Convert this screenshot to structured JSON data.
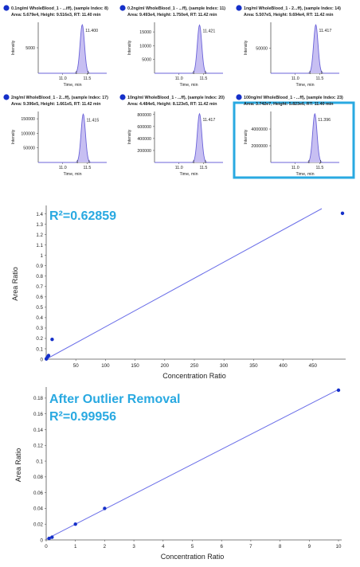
{
  "chart_data": [
    {
      "type": "line",
      "title": "0.1ng/ml WholeBlood_1 - ...iff), (sample Index: 8)",
      "subtitle": "Area: 5.679e4, Height: 9.516e3, RT: 11.40 min",
      "xlabel": "Time, min",
      "ylabel": "Intensity",
      "x_ticks": [
        11.0,
        11.5
      ],
      "y_ticks": [
        5000
      ],
      "ylim": [
        0,
        10000
      ],
      "peak_label": "11.400",
      "peak": {
        "rt": 11.4,
        "height": 9516
      },
      "highlighted": false
    },
    {
      "type": "line",
      "title": "0.2ng/ml WholeBlood_1 - ...ff), (sample Index: 11)",
      "subtitle": "Area: 9.493e4, Height: 1.750e4, RT: 11.42 min",
      "xlabel": "Time, min",
      "ylabel": "Intensity",
      "x_ticks": [
        11.0,
        11.5
      ],
      "y_ticks": [
        5000,
        10000,
        15000
      ],
      "ylim": [
        0,
        18500
      ],
      "peak_label": "11.421",
      "peak": {
        "rt": 11.42,
        "height": 17500
      },
      "highlighted": false
    },
    {
      "type": "line",
      "title": "1ng/ml WholeBlood_1 - 2...ff), (sample Index: 14)",
      "subtitle": "Area: 5.507e5, Height: 9.694e4, RT: 11.42 min",
      "xlabel": "Time, min",
      "ylabel": "Intensity",
      "x_ticks": [
        11.0,
        11.5
      ],
      "y_ticks": [
        50000
      ],
      "ylim": [
        0,
        102000
      ],
      "peak_label": "11.417",
      "peak": {
        "rt": 11.42,
        "height": 96940
      },
      "highlighted": false
    },
    {
      "type": "line",
      "title": "2ng/ml WholeBlood_1 - 2...ff), (sample Index: 17)",
      "subtitle": "Area: 9.396e5, Height: 1.661e5, RT: 11.42 min",
      "xlabel": "Time, min",
      "ylabel": "Intensity",
      "x_ticks": [
        11.0,
        11.5
      ],
      "y_ticks": [
        50000,
        100000,
        150000
      ],
      "ylim": [
        0,
        175000
      ],
      "peak_label": "11.415",
      "peak": {
        "rt": 11.42,
        "height": 166100
      },
      "highlighted": false
    },
    {
      "type": "line",
      "title": "10ng/ml WholeBlood_1 - ...ff), (sample Index: 20)",
      "subtitle": "Area: 4.484e6, Height: 8.123e5, RT: 11.42 min",
      "xlabel": "Time, min",
      "ylabel": "Intensity",
      "x_ticks": [
        11.0,
        11.5
      ],
      "y_ticks": [
        200000,
        400000,
        600000,
        800000
      ],
      "ylim": [
        0,
        850000
      ],
      "peak_label": "11.417",
      "peak": {
        "rt": 11.42,
        "height": 812300
      },
      "highlighted": false
    },
    {
      "type": "line",
      "title": "100ng/ml WholeBlood_1 - ...ff), (sample Index: 23)",
      "subtitle": "Area: 3.742e7, Height: 5.823e6, RT: 11.40 min",
      "xlabel": "Time, min",
      "ylabel": "Intensity",
      "x_ticks": [
        11.0,
        11.5
      ],
      "y_ticks": [
        2000000,
        4000000
      ],
      "ylim": [
        0,
        6100000
      ],
      "peak_label": "11.396",
      "peak": {
        "rt": 11.4,
        "height": 5823000
      },
      "highlighted": true
    },
    {
      "type": "scatter",
      "annotation": "R²=0.62859",
      "xlabel": "Concentration Ratio",
      "ylabel": "Area Ratio",
      "xlim": [
        0,
        500
      ],
      "ylim": [
        0,
        1.45
      ],
      "x_ticks": [
        50,
        100,
        150,
        200,
        250,
        300,
        350,
        400,
        450
      ],
      "y_ticks": [
        0,
        0.1,
        0.2,
        0.3,
        0.4,
        0.5,
        0.6,
        0.7,
        0.8,
        0.9,
        1.0,
        1.1,
        1.2,
        1.3,
        1.4
      ],
      "points": [
        {
          "x": 0.2,
          "y": 0.002
        },
        {
          "x": 0.4,
          "y": 0.004
        },
        {
          "x": 2,
          "y": 0.02
        },
        {
          "x": 4,
          "y": 0.035
        },
        {
          "x": 10,
          "y": 0.19
        },
        {
          "x": 500,
          "y": 1.405
        }
      ],
      "fit": {
        "x": [
          0,
          465
        ],
        "y": [
          0.0,
          1.45
        ]
      }
    },
    {
      "type": "scatter",
      "annotation_title": "After Outlier Removal",
      "annotation": "R²=0.99956",
      "xlabel": "Concentration Ratio",
      "ylabel": "Area Ratio",
      "xlim": [
        0,
        10
      ],
      "ylim": [
        0,
        0.19
      ],
      "x_ticks": [
        0,
        1,
        2,
        3,
        4,
        5,
        6,
        7,
        8,
        9,
        10
      ],
      "y_ticks": [
        0,
        0.02,
        0.04,
        0.06,
        0.08,
        0.1,
        0.12,
        0.14,
        0.16,
        0.18
      ],
      "points": [
        {
          "x": 0.1,
          "y": 0.002
        },
        {
          "x": 0.2,
          "y": 0.0035
        },
        {
          "x": 1,
          "y": 0.02
        },
        {
          "x": 2,
          "y": 0.04
        },
        {
          "x": 10,
          "y": 0.19
        }
      ],
      "fit": {
        "x": [
          0,
          10
        ],
        "y": [
          0.001,
          0.191
        ]
      }
    }
  ],
  "style": {
    "peak_fill": "#c7bff2",
    "peak_line": "#6b63d9",
    "dot_color": "#1530c9",
    "fit_color": "#6a6ee8",
    "highlight_border": "#29a9e1",
    "r2_color": "#29a9e1",
    "axis_color": "#555555"
  }
}
